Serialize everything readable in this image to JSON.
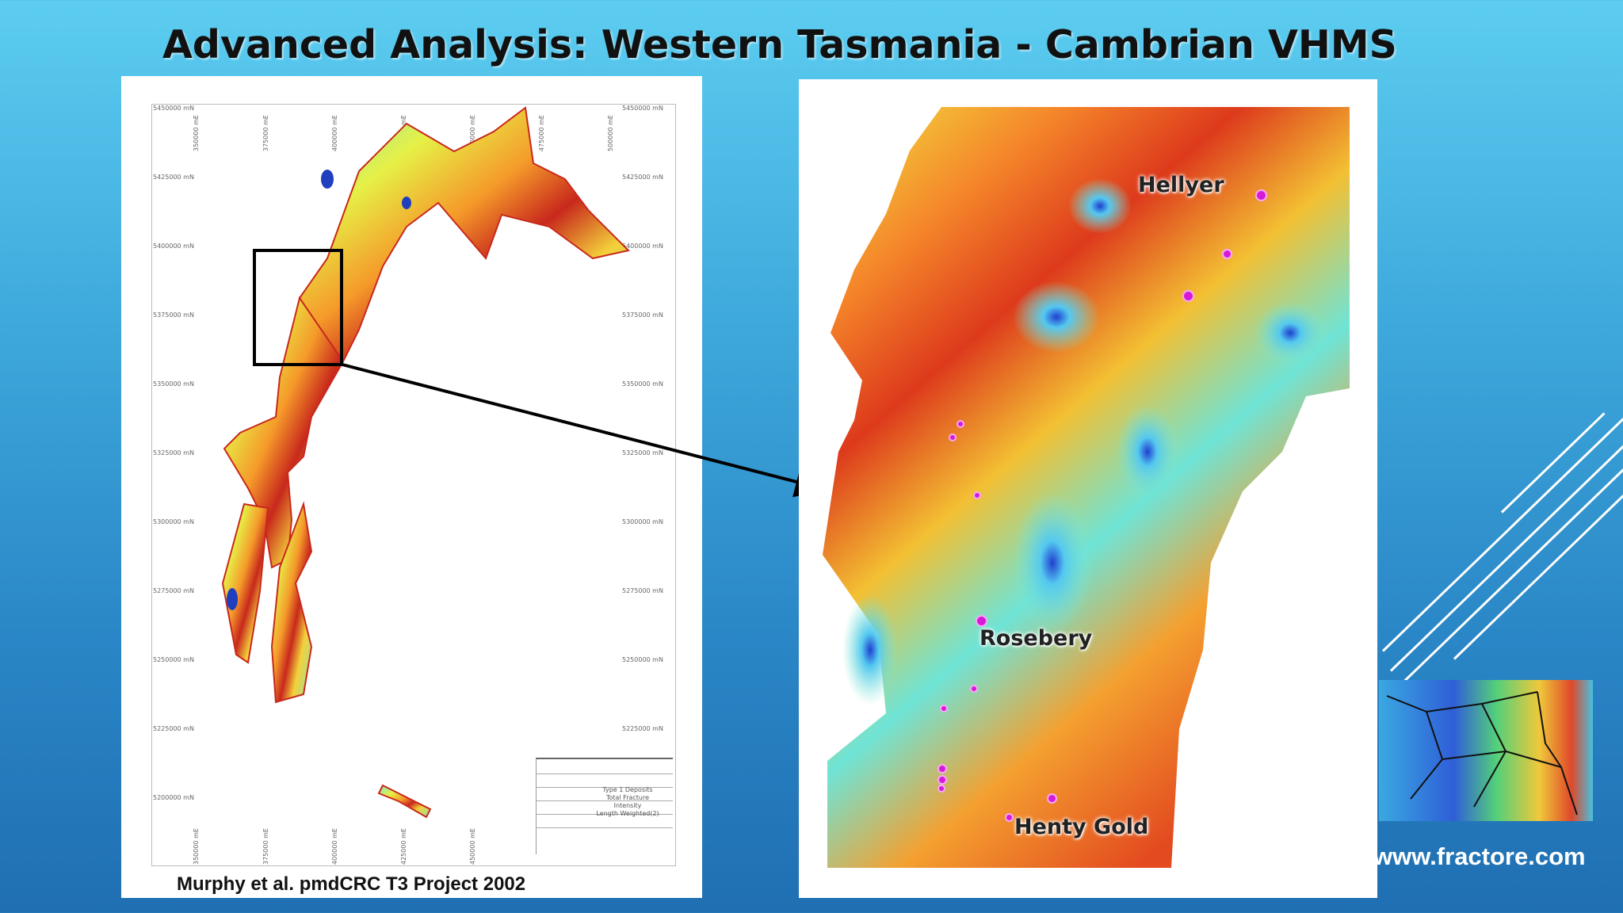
{
  "slide": {
    "title": "Advanced Analysis: Western Tasmania - Cambrian VHMS",
    "caption": "Murphy et al. pmdCRC T3 Project  2002",
    "website": "www.fractore.com"
  },
  "left_map": {
    "north_ticks": [
      "5450000 mN",
      "5425000 mN",
      "5400000 mN",
      "5375000 mN",
      "5350000 mN",
      "5325000 mN",
      "5300000 mN",
      "5275000 mN",
      "5250000 mN",
      "5225000 mN",
      "5200000 mN"
    ],
    "east_ticks": [
      "350000 mE",
      "375000 mE",
      "400000 mE",
      "425000 mE",
      "450000 mE",
      "475000 mE",
      "500000 mE"
    ],
    "legend_title": [
      "Type 1 Deposits",
      "Total Fracture Intensity",
      "Length Weighted(2)"
    ]
  },
  "right_map": {
    "labels": {
      "hellyer": "Hellyer",
      "rosebery": "Rosebery",
      "henty": "Henty Gold"
    }
  },
  "colors": {
    "deposit": "#d61bd6",
    "background_top": "#5ccdf0",
    "background_bottom": "#1f6fb2"
  }
}
